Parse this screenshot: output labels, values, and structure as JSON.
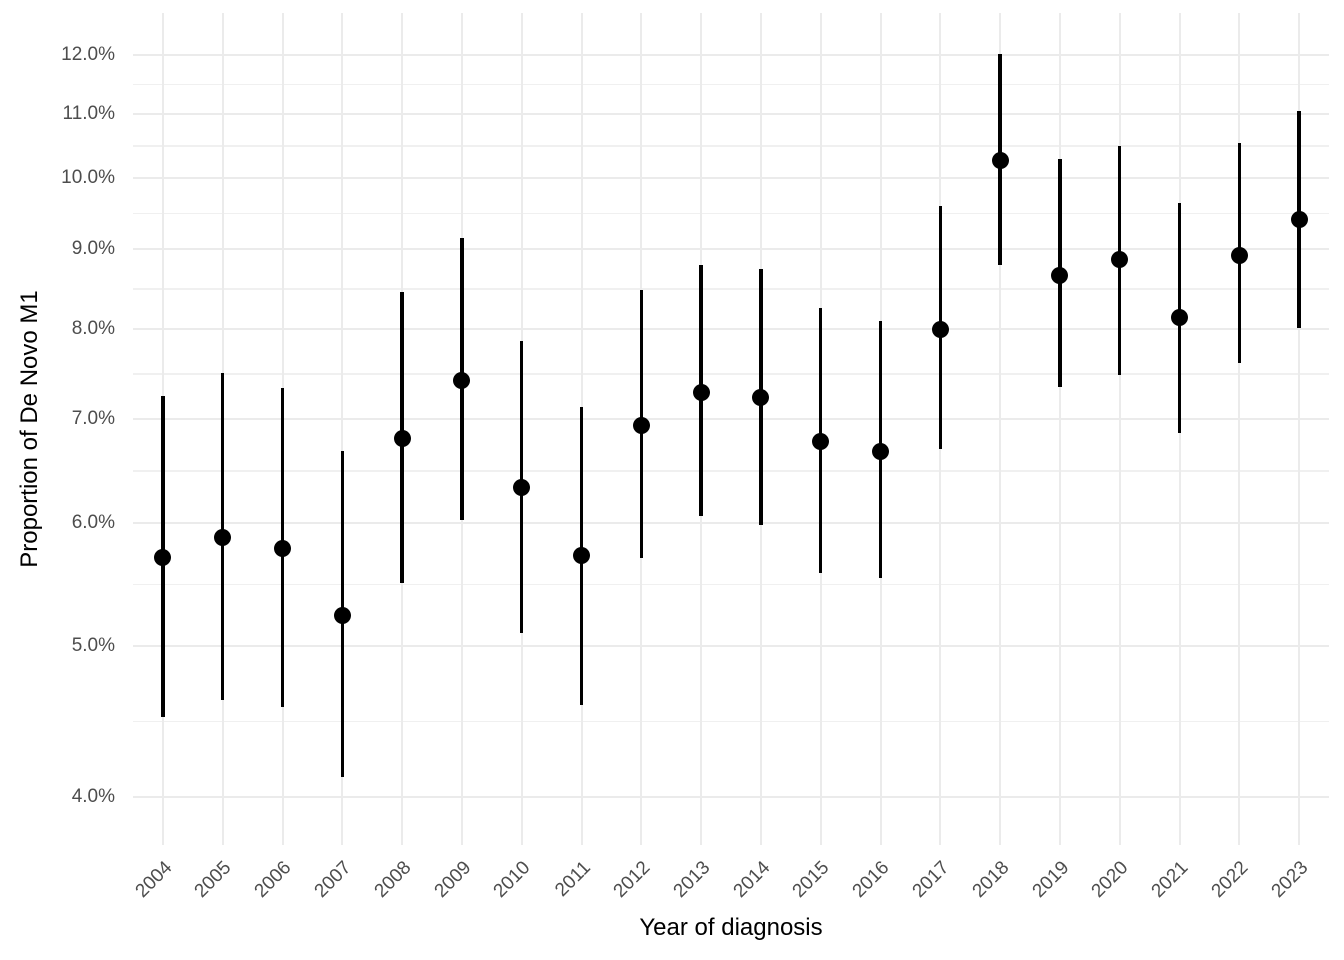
{
  "figure": {
    "x_axis_title": "Year of diagnosis",
    "y_axis_title": "Proportion of De Novo M1"
  },
  "chart_data": {
    "type": "scatter",
    "subtype": "pointrange",
    "title": "",
    "xlabel": "Year of diagnosis",
    "ylabel": "Proportion of De Novo M1",
    "x_categories": [
      "2004",
      "2005",
      "2006",
      "2007",
      "2008",
      "2009",
      "2010",
      "2011",
      "2012",
      "2013",
      "2014",
      "2015",
      "2016",
      "2017",
      "2018",
      "2019",
      "2020",
      "2021",
      "2022",
      "2023"
    ],
    "series": [
      {
        "name": "Proportion of De Novo M1 (point estimate with interval)",
        "values_pct": [
          5.7,
          5.87,
          5.78,
          5.23,
          6.8,
          7.41,
          6.32,
          5.72,
          6.93,
          7.28,
          7.23,
          6.77,
          6.67,
          7.99,
          10.27,
          8.66,
          8.86,
          8.13,
          8.92,
          9.4
        ],
        "ci_low_pct": [
          4.5,
          4.62,
          4.57,
          4.12,
          5.49,
          6.03,
          5.1,
          4.58,
          5.7,
          6.06,
          5.98,
          5.57,
          5.53,
          6.7,
          8.79,
          7.34,
          7.47,
          6.86,
          7.6,
          8.01
        ],
        "ci_high_pct": [
          7.24,
          7.49,
          7.33,
          6.68,
          8.45,
          9.15,
          7.86,
          7.13,
          8.47,
          8.79,
          8.74,
          8.25,
          8.09,
          9.59,
          12.02,
          10.29,
          10.48,
          9.64,
          10.53,
          11.05
        ]
      }
    ],
    "y_scale": "log",
    "y_domain_pct": [
      3.725,
      12.77
    ],
    "y_major_ticks_pct": [
      4,
      5,
      6,
      7,
      8,
      9,
      10,
      11,
      12
    ],
    "y_tick_labels": [
      "4.0%",
      "5.0%",
      "6.0%",
      "7.0%",
      "8.0%",
      "9.0%",
      "10.0%",
      "11.0%",
      "12.0%"
    ],
    "grid": "major+minor, no axis lines, no legend",
    "legend": "none",
    "colors": {
      "point": "#000000",
      "interval_line": "#000000",
      "grid_major": "#EBEBEB",
      "grid_minor": "#F0F0F0",
      "tick_text": "#4D4D4D",
      "axis_title_text": "#000000",
      "background": "#FFFFFF"
    }
  }
}
